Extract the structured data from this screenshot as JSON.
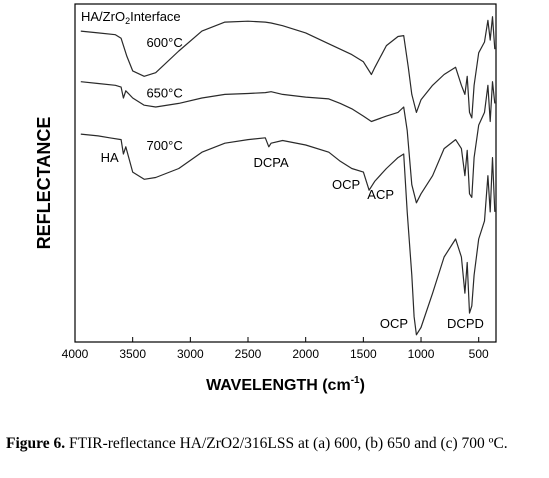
{
  "chart_data": {
    "type": "line",
    "title": "HA/ZrO2Interface",
    "title_main": "HA/ZrO",
    "title_sub": "2",
    "title_tail": "Interface",
    "xlabel_main": "WAVELENGTH (cm",
    "xlabel_sup": "-1",
    "xlabel_tail": ")",
    "ylabel": "REFLECTANCE",
    "xlim": [
      4000,
      350
    ],
    "x_reversed": true,
    "grid": false,
    "x_ticks": [
      {
        "value": 4000,
        "label": "4000"
      },
      {
        "value": 3500,
        "label": "3500"
      },
      {
        "value": 3000,
        "label": "3000"
      },
      {
        "value": 2500,
        "label": "2500"
      },
      {
        "value": 2000,
        "label": "2000"
      },
      {
        "value": 1500,
        "label": "1500"
      },
      {
        "value": 1000,
        "label": "1000"
      },
      {
        "value": 500,
        "label": "500"
      }
    ],
    "series": [
      {
        "name": "600°C",
        "label_x": 3450,
        "values": [
          [
            3950,
            0.9
          ],
          [
            3800,
            0.89
          ],
          [
            3650,
            0.88
          ],
          [
            3600,
            0.86
          ],
          [
            3550,
            0.76
          ],
          [
            3500,
            0.68
          ],
          [
            3400,
            0.65
          ],
          [
            3300,
            0.67
          ],
          [
            3100,
            0.79
          ],
          [
            2900,
            0.9
          ],
          [
            2700,
            0.95
          ],
          [
            2500,
            0.955
          ],
          [
            2350,
            0.95
          ],
          [
            2300,
            0.945
          ],
          [
            2200,
            0.93
          ],
          [
            2000,
            0.89
          ],
          [
            1800,
            0.83
          ],
          [
            1700,
            0.8
          ],
          [
            1600,
            0.77
          ],
          [
            1500,
            0.73
          ],
          [
            1430,
            0.66
          ],
          [
            1400,
            0.7
          ],
          [
            1300,
            0.82
          ],
          [
            1200,
            0.87
          ],
          [
            1150,
            0.875
          ],
          [
            1110,
            0.7
          ],
          [
            1080,
            0.55
          ],
          [
            1040,
            0.45
          ],
          [
            1000,
            0.52
          ],
          [
            900,
            0.6
          ],
          [
            800,
            0.66
          ],
          [
            700,
            0.7
          ],
          [
            650,
            0.6
          ],
          [
            620,
            0.55
          ],
          [
            600,
            0.65
          ],
          [
            580,
            0.45
          ],
          [
            560,
            0.42
          ],
          [
            540,
            0.6
          ],
          [
            500,
            0.78
          ],
          [
            450,
            0.84
          ],
          [
            420,
            0.96
          ],
          [
            400,
            0.85
          ],
          [
            380,
            0.98
          ],
          [
            360,
            0.8
          ]
        ]
      },
      {
        "name": "650°C",
        "label_x": 3450,
        "values": [
          [
            3950,
            0.62
          ],
          [
            3800,
            0.61
          ],
          [
            3650,
            0.6
          ],
          [
            3600,
            0.59
          ],
          [
            3580,
            0.53
          ],
          [
            3560,
            0.57
          ],
          [
            3500,
            0.53
          ],
          [
            3400,
            0.49
          ],
          [
            3300,
            0.48
          ],
          [
            3100,
            0.5
          ],
          [
            2900,
            0.53
          ],
          [
            2700,
            0.55
          ],
          [
            2500,
            0.555
          ],
          [
            2350,
            0.56
          ],
          [
            2300,
            0.565
          ],
          [
            2200,
            0.55
          ],
          [
            2000,
            0.535
          ],
          [
            1800,
            0.525
          ],
          [
            1700,
            0.5
          ],
          [
            1600,
            0.47
          ],
          [
            1500,
            0.43
          ],
          [
            1430,
            0.4
          ],
          [
            1300,
            0.43
          ],
          [
            1200,
            0.45
          ],
          [
            1150,
            0.48
          ],
          [
            1120,
            0.35
          ],
          [
            1080,
            0.05
          ],
          [
            1040,
            -0.05
          ],
          [
            1000,
            0.0
          ],
          [
            900,
            0.1
          ],
          [
            800,
            0.25
          ],
          [
            700,
            0.3
          ],
          [
            650,
            0.25
          ],
          [
            620,
            0.1
          ],
          [
            600,
            0.24
          ],
          [
            580,
            0.0
          ],
          [
            560,
            -0.02
          ],
          [
            540,
            0.2
          ],
          [
            500,
            0.38
          ],
          [
            450,
            0.45
          ],
          [
            420,
            0.6
          ],
          [
            400,
            0.4
          ],
          [
            380,
            0.62
          ],
          [
            360,
            0.5
          ]
        ]
      },
      {
        "name": "700°C",
        "label_x": 3450,
        "values": [
          [
            3950,
            0.33
          ],
          [
            3800,
            0.32
          ],
          [
            3700,
            0.31
          ],
          [
            3600,
            0.3
          ],
          [
            3580,
            0.22
          ],
          [
            3560,
            0.26
          ],
          [
            3500,
            0.12
          ],
          [
            3400,
            0.08
          ],
          [
            3300,
            0.09
          ],
          [
            3100,
            0.14
          ],
          [
            2900,
            0.23
          ],
          [
            2700,
            0.28
          ],
          [
            2500,
            0.3
          ],
          [
            2350,
            0.31
          ],
          [
            2320,
            0.26
          ],
          [
            2300,
            0.28
          ],
          [
            2200,
            0.295
          ],
          [
            2000,
            0.27
          ],
          [
            1800,
            0.23
          ],
          [
            1700,
            0.18
          ],
          [
            1600,
            0.14
          ],
          [
            1500,
            0.12
          ],
          [
            1450,
            0.02
          ],
          [
            1400,
            0.07
          ],
          [
            1300,
            0.14
          ],
          [
            1200,
            0.2
          ],
          [
            1150,
            0.22
          ],
          [
            1120,
            -0.1
          ],
          [
            1080,
            -0.45
          ],
          [
            1060,
            -0.68
          ],
          [
            1040,
            -0.78
          ],
          [
            1000,
            -0.74
          ],
          [
            900,
            -0.55
          ],
          [
            800,
            -0.35
          ],
          [
            700,
            -0.25
          ],
          [
            650,
            -0.35
          ],
          [
            620,
            -0.55
          ],
          [
            600,
            -0.38
          ],
          [
            580,
            -0.66
          ],
          [
            560,
            -0.62
          ],
          [
            540,
            -0.45
          ],
          [
            500,
            -0.25
          ],
          [
            450,
            -0.15
          ],
          [
            420,
            0.1
          ],
          [
            400,
            -0.1
          ],
          [
            380,
            0.2
          ],
          [
            360,
            -0.1
          ]
        ]
      }
    ],
    "annotations": [
      {
        "text": "HA",
        "x": 3700,
        "target": "700°C"
      },
      {
        "text": "DCPA",
        "x": 2300,
        "target": "700°C"
      },
      {
        "text": "OCP",
        "x": 1650,
        "target": "700°C"
      },
      {
        "text": "ACP",
        "x": 1350,
        "target": "700°C"
      },
      {
        "text": "OCP",
        "x": 1200,
        "target": "bottom"
      },
      {
        "text": "DCPD",
        "x": 580,
        "target": "bottom"
      }
    ],
    "ylim": [
      -0.82,
      1.05
    ]
  },
  "caption": {
    "label": "Figure 6.",
    "text": " FTIR-reflectance HA/ZrO2/316LSS at (a) 600, (b) 650 and (c) 700 ºC."
  }
}
